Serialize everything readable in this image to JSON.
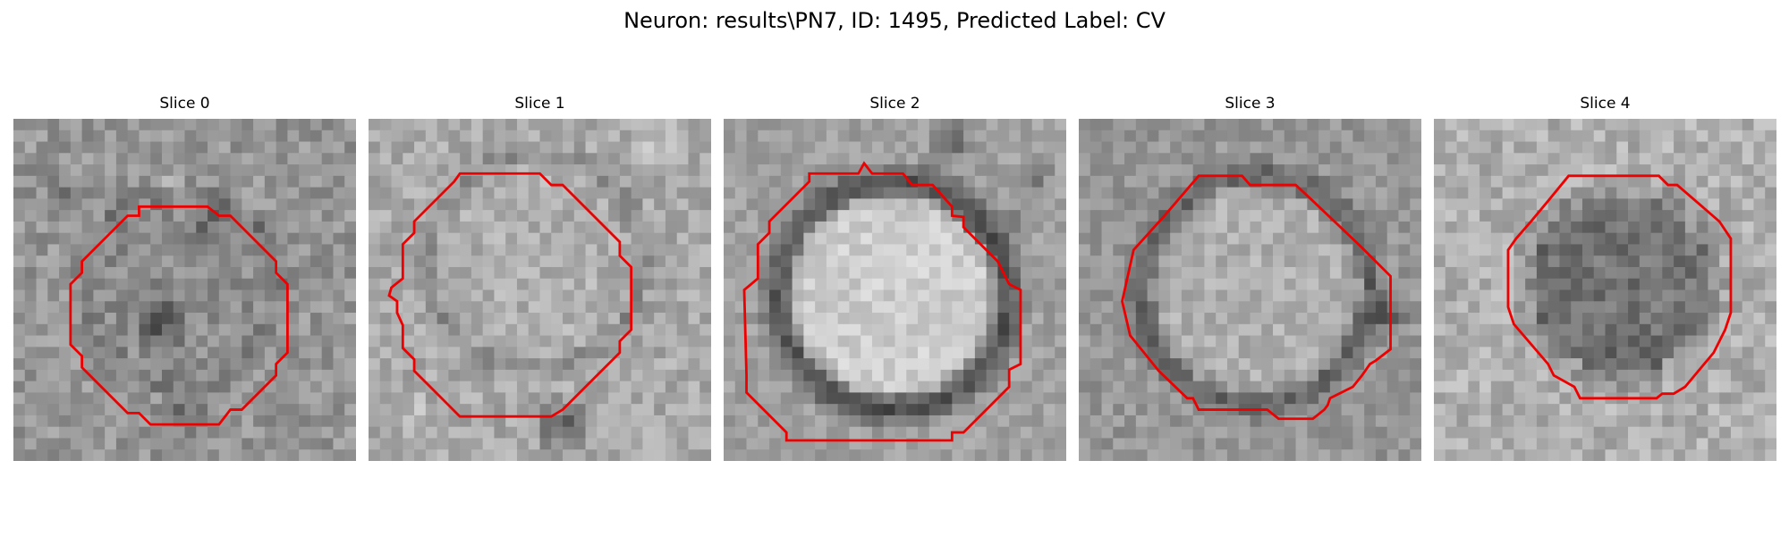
{
  "figure": {
    "suptitle": "Neuron: results\\PN7, ID: 1495, Predicted Label: CV",
    "contour_color": "#ee0000",
    "colormap": "gray"
  },
  "panels": [
    {
      "title": "Slice 0"
    },
    {
      "title": "Slice 1"
    },
    {
      "title": "Slice 2"
    },
    {
      "title": "Slice 3"
    },
    {
      "title": "Slice 4"
    }
  ]
}
